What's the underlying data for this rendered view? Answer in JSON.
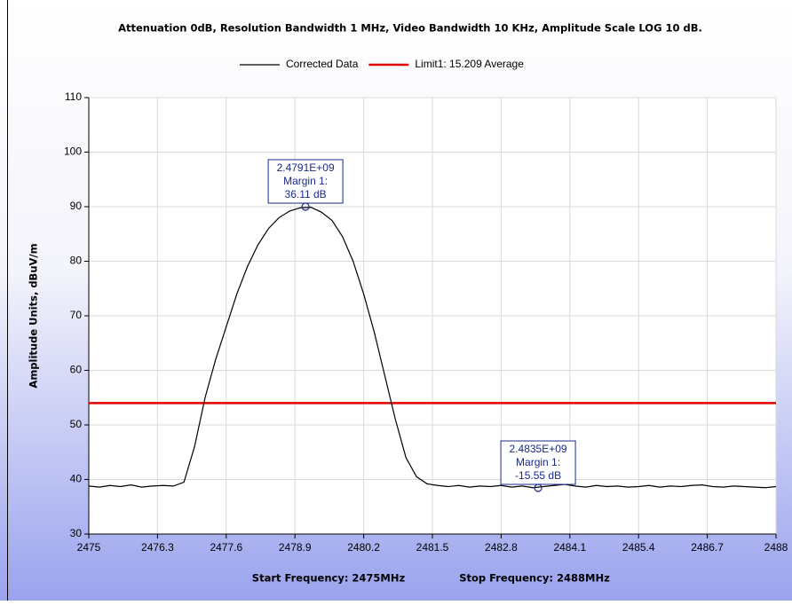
{
  "chart_data": {
    "type": "line",
    "title": "Attenuation 0dB, Resolution Bandwidth 1 MHz, Video Bandwidth 10 KHz, Amplitude Scale LOG 10 dB.",
    "ylabel": "Amplitude Units, dBuV/m",
    "xlabels": [
      "Start Frequency: 2475MHz",
      "Stop Frequency: 2488MHz"
    ],
    "x": [
      2475.0,
      2475.2,
      2475.4,
      2475.6,
      2475.8,
      2476.0,
      2476.2,
      2476.4,
      2476.6,
      2476.8,
      2477.0,
      2477.2,
      2477.4,
      2477.6,
      2477.8,
      2478.0,
      2478.2,
      2478.4,
      2478.6,
      2478.8,
      2479.0,
      2479.2,
      2479.4,
      2479.6,
      2479.8,
      2480.0,
      2480.2,
      2480.4,
      2480.6,
      2480.8,
      2481.0,
      2481.2,
      2481.4,
      2481.6,
      2481.8,
      2482.0,
      2482.2,
      2482.4,
      2482.6,
      2482.8,
      2483.0,
      2483.2,
      2483.4,
      2483.6,
      2483.8,
      2484.0,
      2484.2,
      2484.4,
      2484.6,
      2484.8,
      2485.0,
      2485.2,
      2485.4,
      2485.6,
      2485.8,
      2486.0,
      2486.2,
      2486.4,
      2486.6,
      2486.8,
      2487.0,
      2487.2,
      2487.4,
      2487.6,
      2487.8,
      2488.0
    ],
    "series": [
      {
        "name": "Corrected Data",
        "color": "#000000",
        "values": [
          38.8,
          38.6,
          38.9,
          38.7,
          39.0,
          38.6,
          38.8,
          38.9,
          38.8,
          39.5,
          46,
          55,
          62,
          68,
          74,
          79,
          83,
          86,
          88,
          89.2,
          89.8,
          89.9,
          89,
          87.5,
          84.5,
          80,
          74,
          67,
          59,
          51,
          44,
          40.5,
          39.2,
          38.9,
          38.7,
          38.9,
          38.6,
          38.8,
          38.7,
          38.9,
          38.6,
          38.8,
          38.5,
          38.7,
          38.9,
          39.1,
          38.8,
          38.6,
          38.9,
          38.7,
          38.8,
          38.6,
          38.7,
          38.9,
          38.6,
          38.8,
          38.7,
          38.9,
          39.0,
          38.7,
          38.6,
          38.8,
          38.7,
          38.6,
          38.5,
          38.7
        ]
      }
    ],
    "limits": [
      {
        "name": "Limit1: 15.209 Average",
        "value": 54,
        "color": "#e00000"
      }
    ],
    "markers": [
      {
        "x": 2479.1,
        "y": 90,
        "lines": [
          "2.4791E+09",
          "Margin 1:",
          "36.11 dB"
        ]
      },
      {
        "x": 2483.5,
        "y": 38.45,
        "lines": [
          "2.4835E+09",
          "Margin 1:",
          "-15.55 dB"
        ]
      }
    ],
    "xlim": [
      2475,
      2488
    ],
    "xticks": [
      2475,
      2476.3,
      2477.6,
      2478.9,
      2480.2,
      2481.5,
      2482.8,
      2484.1,
      2485.4,
      2486.7,
      2488
    ],
    "ylim": [
      30,
      110
    ],
    "yticks": [
      30,
      40,
      50,
      60,
      70,
      80,
      90,
      100,
      110
    ],
    "grid": true
  }
}
